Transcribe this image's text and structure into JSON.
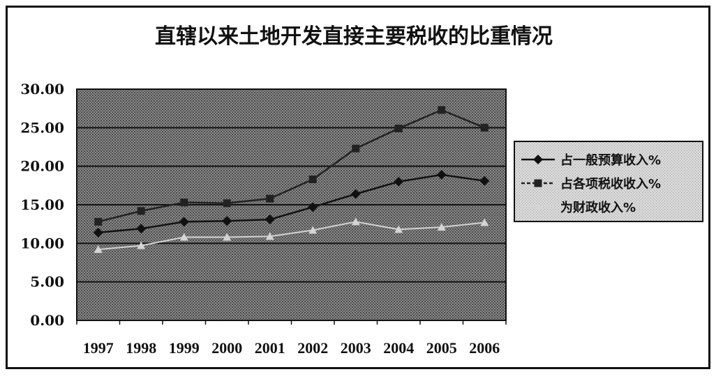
{
  "chart_data": {
    "type": "line",
    "title": "直辖以来土地开发直接主要税收的比重情况",
    "categories": [
      "1997",
      "1998",
      "1999",
      "2000",
      "2001",
      "2002",
      "2003",
      "2004",
      "2005",
      "2006"
    ],
    "series": [
      {
        "name": "占一般预算收入%",
        "color": "#111111",
        "marker": "diamond",
        "values": [
          11.4,
          11.9,
          12.8,
          12.9,
          13.1,
          14.7,
          16.4,
          18.0,
          18.9,
          18.1
        ]
      },
      {
        "name": "占各项税收收入%",
        "color": "#222222",
        "marker": "square",
        "values": [
          12.8,
          14.2,
          15.3,
          15.2,
          15.8,
          18.3,
          22.3,
          24.9,
          27.3,
          25.0
        ]
      },
      {
        "name": "为财政收入%",
        "color": "#d4d4d4",
        "marker": "triangle",
        "values": [
          9.2,
          9.7,
          10.8,
          10.8,
          10.9,
          11.7,
          12.8,
          11.8,
          12.1,
          12.7
        ]
      }
    ],
    "ylim": [
      0,
      30
    ],
    "yticks": [
      "0.00",
      "5.00",
      "10.00",
      "15.00",
      "20.00",
      "25.00",
      "30.00"
    ],
    "xlabel": "",
    "ylabel": "",
    "grid": true,
    "legend_position": "right"
  }
}
